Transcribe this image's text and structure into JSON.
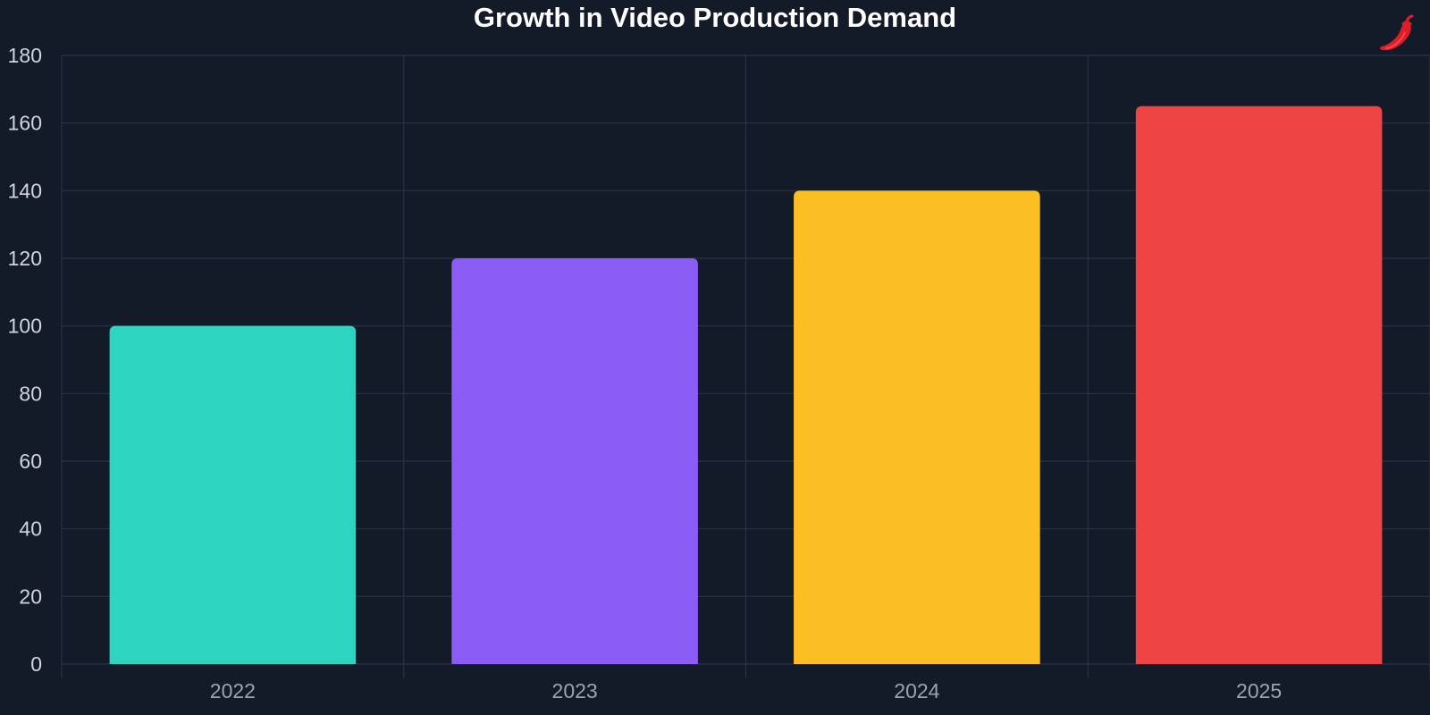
{
  "chart_data": {
    "type": "bar",
    "title": "Growth in Video Production Demand",
    "xlabel": "",
    "ylabel": "",
    "categories": [
      "2022",
      "2023",
      "2024",
      "2025"
    ],
    "values": [
      100,
      120,
      140,
      165
    ],
    "bar_colors": [
      "#2dd4bf",
      "#8b5cf6",
      "#fbbf24",
      "#ef4444"
    ],
    "ylim": [
      0,
      180
    ],
    "yticks": [
      0,
      20,
      40,
      60,
      80,
      100,
      120,
      140,
      160,
      180
    ],
    "grid": true,
    "legend": "none"
  },
  "theme": {
    "background": "#131a28",
    "grid_color": "#2a3344",
    "axis_text_color": "#d1d5db",
    "xaxis_text_color": "#9ca3af",
    "title_color": "#ffffff",
    "logo_color": "#e11d2a"
  },
  "logo": {
    "icon": "chili-pepper-icon"
  }
}
